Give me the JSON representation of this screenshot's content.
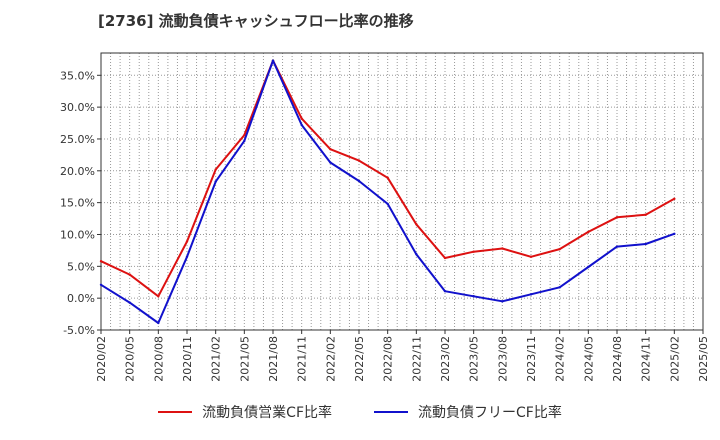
{
  "chart_data": {
    "type": "line",
    "title": "[2736]  流動負債キャッシュフロー比率の推移",
    "x": [
      "2020/02",
      "2020/05",
      "2020/08",
      "2020/11",
      "2021/02",
      "2021/05",
      "2021/08",
      "2021/11",
      "2022/02",
      "2022/05",
      "2022/08",
      "2022/11",
      "2023/02",
      "2023/05",
      "2023/08",
      "2023/11",
      "2024/02",
      "2024/05",
      "2024/08",
      "2024/11",
      "2025/02",
      "2025/05"
    ],
    "y_tick_labels": [
      "-5.0%",
      "0.0%",
      "5.0%",
      "10.0%",
      "15.0%",
      "20.0%",
      "25.0%",
      "30.0%",
      "35.0%"
    ],
    "y_ticks": [
      -5,
      0,
      5,
      10,
      15,
      20,
      25,
      30,
      35
    ],
    "ylim": [
      -5,
      38.5
    ],
    "grid": true,
    "legend_position": "bottom",
    "series": [
      {
        "name": "流動負債営業CF比率",
        "color": "#dd1111",
        "values": [
          5.8,
          3.7,
          0.3,
          8.9,
          20.2,
          25.6,
          37.3,
          28.2,
          23.4,
          21.6,
          18.9,
          11.6,
          6.3,
          7.3,
          7.8,
          6.5,
          7.7,
          10.4,
          12.7,
          13.1,
          15.6,
          null
        ]
      },
      {
        "name": "流動負債フリーCF比率",
        "color": "#1111cc",
        "values": [
          2.1,
          -0.7,
          -3.9,
          6.5,
          18.3,
          24.7,
          37.3,
          27.2,
          21.3,
          18.4,
          14.8,
          6.9,
          1.1,
          0.3,
          -0.5,
          0.6,
          1.7,
          4.9,
          8.1,
          8.5,
          10.1,
          null
        ]
      }
    ]
  }
}
